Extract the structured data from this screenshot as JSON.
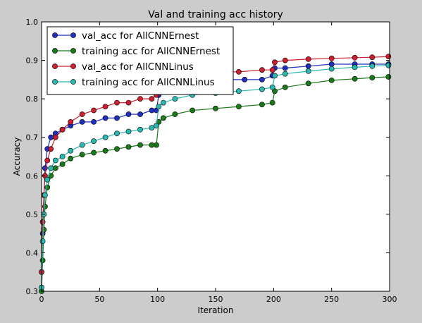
{
  "chart_data": {
    "type": "line",
    "title": "Val and training acc history",
    "xlabel": "Iteration",
    "ylabel": "Accuracy",
    "xlim": [
      0,
      300
    ],
    "ylim": [
      0.3,
      1.0
    ],
    "xticks": [
      0,
      50,
      100,
      150,
      200,
      250,
      300
    ],
    "xtick_labels": [
      "0",
      "50",
      "100",
      "150",
      "200",
      "250",
      "300"
    ],
    "yticks": [
      0.3,
      0.4,
      0.5,
      0.6,
      0.7,
      0.8,
      0.9,
      1.0
    ],
    "ytick_labels": [
      "0.3",
      "0.4",
      "0.5",
      "0.6",
      "0.7",
      "0.8",
      "0.9",
      "1.0"
    ],
    "legend_position": "top-left",
    "grid": false,
    "marker": "circle",
    "series": [
      {
        "name": "val_acc for AllCNNErnest",
        "color": "#1f2fbf",
        "x": [
          0,
          1,
          2,
          3,
          5,
          8,
          12,
          18,
          25,
          35,
          45,
          55,
          65,
          75,
          85,
          95,
          99,
          101,
          105,
          115,
          125,
          140,
          160,
          175,
          190,
          199,
          201,
          210,
          230,
          250,
          270,
          285,
          299
        ],
        "y": [
          0.35,
          0.45,
          0.55,
          0.62,
          0.67,
          0.7,
          0.71,
          0.72,
          0.73,
          0.74,
          0.74,
          0.75,
          0.75,
          0.76,
          0.76,
          0.77,
          0.77,
          0.81,
          0.83,
          0.84,
          0.84,
          0.85,
          0.85,
          0.85,
          0.85,
          0.86,
          0.88,
          0.88,
          0.885,
          0.89,
          0.89,
          0.89,
          0.89
        ]
      },
      {
        "name": "training acc for AllCNNErnest",
        "color": "#1a7a1a",
        "x": [
          0,
          1,
          2,
          3,
          5,
          8,
          12,
          18,
          25,
          35,
          45,
          55,
          65,
          75,
          85,
          95,
          99,
          101,
          105,
          115,
          130,
          150,
          170,
          190,
          199,
          201,
          210,
          230,
          250,
          270,
          285,
          299
        ],
        "y": [
          0.3,
          0.38,
          0.46,
          0.52,
          0.57,
          0.6,
          0.62,
          0.63,
          0.645,
          0.655,
          0.66,
          0.665,
          0.67,
          0.675,
          0.68,
          0.68,
          0.68,
          0.74,
          0.75,
          0.76,
          0.77,
          0.775,
          0.78,
          0.785,
          0.79,
          0.82,
          0.83,
          0.84,
          0.848,
          0.852,
          0.855,
          0.857
        ]
      },
      {
        "name": "val_acc for AllCNNLinus",
        "color": "#cc1f2f",
        "x": [
          0,
          1,
          2,
          3,
          5,
          8,
          12,
          18,
          25,
          35,
          45,
          55,
          65,
          75,
          85,
          95,
          99,
          101,
          105,
          115,
          130,
          150,
          170,
          190,
          199,
          201,
          210,
          230,
          250,
          270,
          285,
          299
        ],
        "y": [
          0.35,
          0.48,
          0.55,
          0.6,
          0.64,
          0.67,
          0.7,
          0.72,
          0.74,
          0.76,
          0.77,
          0.78,
          0.79,
          0.79,
          0.8,
          0.8,
          0.81,
          0.84,
          0.85,
          0.86,
          0.865,
          0.87,
          0.87,
          0.875,
          0.875,
          0.895,
          0.9,
          0.903,
          0.905,
          0.907,
          0.908,
          0.91
        ]
      },
      {
        "name": "training acc for AllCNNLinus",
        "color": "#2ab8b0",
        "x": [
          0,
          1,
          2,
          3,
          5,
          8,
          12,
          18,
          25,
          35,
          45,
          55,
          65,
          75,
          85,
          95,
          99,
          101,
          105,
          115,
          130,
          150,
          170,
          190,
          199,
          201,
          210,
          230,
          250,
          270,
          285,
          299
        ],
        "y": [
          0.31,
          0.43,
          0.5,
          0.55,
          0.59,
          0.62,
          0.64,
          0.65,
          0.665,
          0.68,
          0.69,
          0.7,
          0.71,
          0.715,
          0.72,
          0.725,
          0.73,
          0.78,
          0.79,
          0.8,
          0.81,
          0.815,
          0.82,
          0.825,
          0.83,
          0.86,
          0.865,
          0.872,
          0.878,
          0.882,
          0.885,
          0.887
        ]
      }
    ]
  }
}
